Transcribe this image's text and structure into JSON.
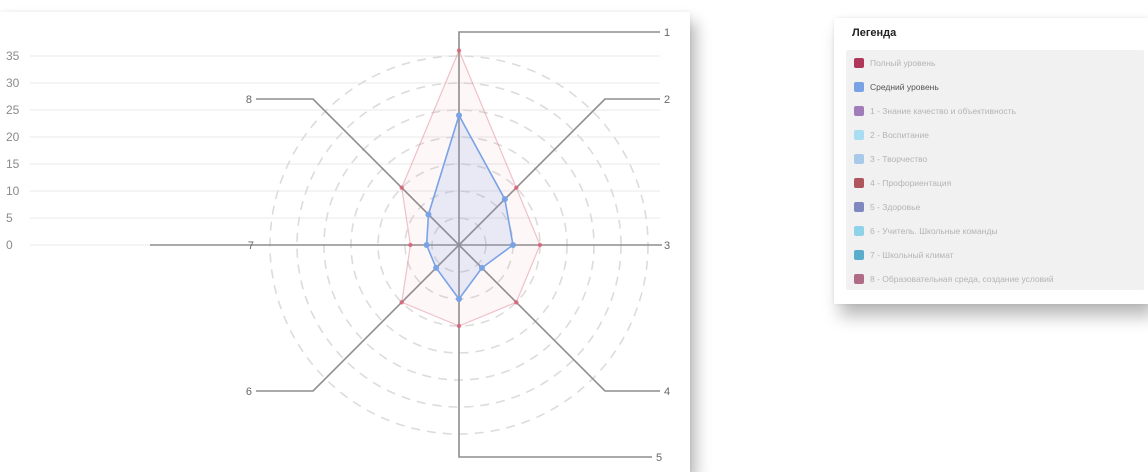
{
  "legend": {
    "title": "Легенда",
    "items": [
      {
        "label": "Полный уровень",
        "color": "#b0375a",
        "active": false
      },
      {
        "label": "Средний уровень",
        "color": "#7aa3e6",
        "active": true
      },
      {
        "label": "1 - Знание качество и объективность",
        "color": "#a07cb8",
        "active": false
      },
      {
        "label": "2 - Воспитание",
        "color": "#a9def2",
        "active": false
      },
      {
        "label": "3 - Творчество",
        "color": "#a8c9ea",
        "active": false
      },
      {
        "label": "4 - Профориентация",
        "color": "#b0555e",
        "active": false
      },
      {
        "label": "5 - Здоровье",
        "color": "#8088c0",
        "active": false
      },
      {
        "label": "6 - Учитель. Школьные команды",
        "color": "#8fd3ea",
        "active": false
      },
      {
        "label": "7 - Школьный климат",
        "color": "#5aaecc",
        "active": false
      },
      {
        "label": "8 - Образовательная среда, создание условий",
        "color": "#b06c86",
        "active": false
      }
    ]
  },
  "chart_data": {
    "type": "radar",
    "axes": [
      "1",
      "2",
      "3",
      "4",
      "5",
      "6",
      "7",
      "8"
    ],
    "rlim": [
      0,
      35
    ],
    "ticks": [
      0,
      5,
      10,
      15,
      20,
      25,
      30,
      35
    ],
    "series": [
      {
        "name": "Полный уровень",
        "color": "#e07a8c",
        "values": [
          36,
          15,
          15,
          15,
          15,
          15,
          9,
          15
        ]
      },
      {
        "name": "Средний уровень",
        "color": "#7aa3e6",
        "values": [
          24,
          12,
          10,
          6,
          10,
          6,
          6,
          8
        ]
      }
    ],
    "grid": "dashed-circles"
  }
}
